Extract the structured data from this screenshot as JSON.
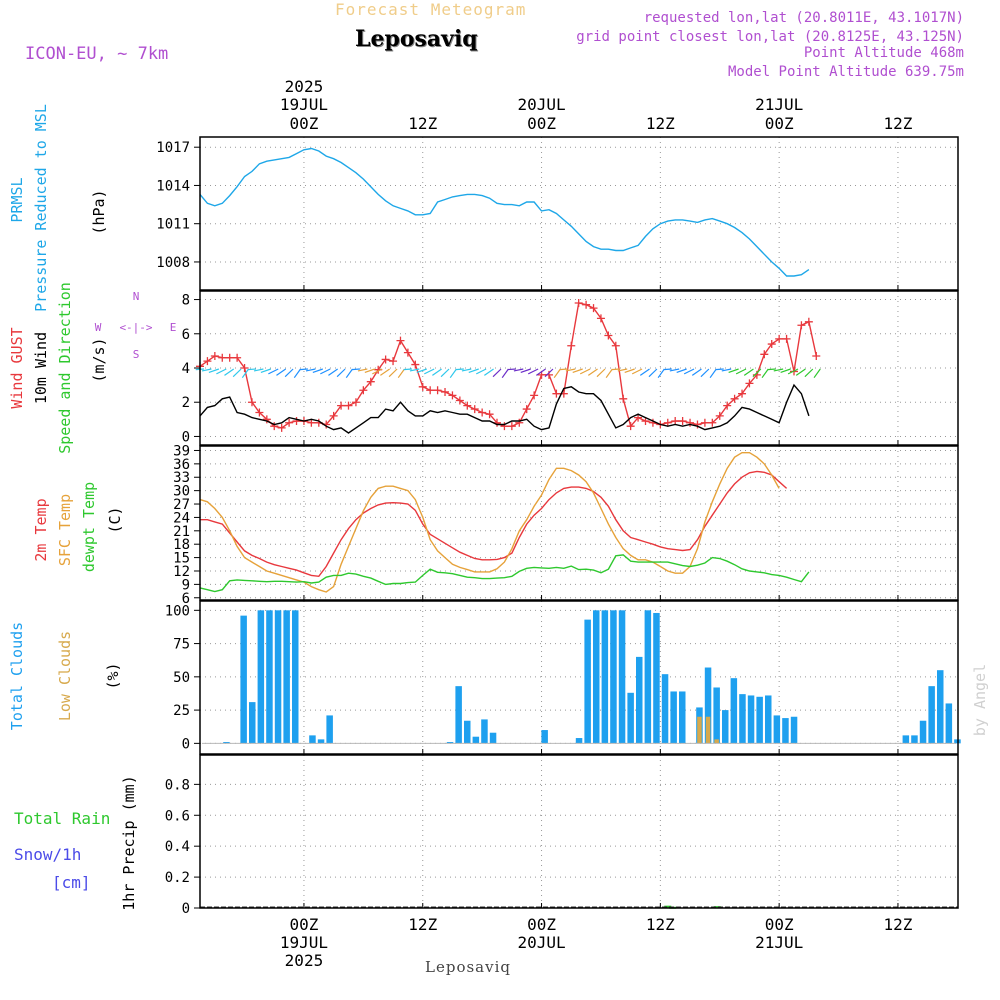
{
  "header": {
    "product": "Forecast Meteogram",
    "location": "Leposaviq",
    "model": "ICON-EU, ~ 7km",
    "requested": "requested lon,lat (20.8011E, 43.1017N)",
    "grid_point": "grid point closest lon,lat (20.8125E, 43.125N)",
    "point_alt": "Point Altitude 468m",
    "model_alt": "Model Point Altitude 639.75m"
  },
  "footer": {
    "location": "Leposaviq",
    "watermark": "by Angel"
  },
  "time_axis": {
    "ticks": [
      {
        "t": 0,
        "label": "00Z"
      },
      {
        "t": 12,
        "label": "12Z"
      },
      {
        "t": 24,
        "label": "00Z"
      },
      {
        "t": 36,
        "label": "12Z"
      },
      {
        "t": 48,
        "label": "00Z"
      },
      {
        "t": 60,
        "label": "12Z"
      }
    ],
    "top_dates": [
      {
        "t": 0,
        "year": "2025",
        "day": "19JUL"
      },
      {
        "t": 24,
        "year": "",
        "day": "20JUL"
      },
      {
        "t": 48,
        "year": "",
        "day": "21JUL"
      }
    ],
    "bottom_dates": [
      {
        "t": 0,
        "year": "2025",
        "day": "19JUL"
      },
      {
        "t": 24,
        "year": "",
        "day": "20JUL"
      },
      {
        "t": 48,
        "year": "",
        "day": "21JUL"
      }
    ]
  },
  "colors": {
    "pressure": "#1ea7e8",
    "gust": "#e8383d",
    "wind": "#000000",
    "temp2m": "#e8383d",
    "sfc": "#e6a23a",
    "dewpt": "#2ec82e",
    "total_cloud": "#1ea0ef",
    "low_cloud": "#d7a94c",
    "rain": "#2ec82e",
    "snow": "#4b4be8",
    "compass": "#b04fd0"
  },
  "chart_data": [
    {
      "type": "line",
      "panel": "pressure",
      "ylabel_lines": [
        "PRMSL",
        "Pressure Reduced to MSL"
      ],
      "unit": "(hPa)",
      "yticks": [
        1008,
        1011,
        1014,
        1017
      ],
      "ylim": [
        1005.8,
        1017.8
      ],
      "series": [
        {
          "values": [
            1013.3,
            1012.6,
            1012.4,
            1012.6,
            1013.2,
            1013.9,
            1014.7,
            1015.1,
            1015.7,
            1015.9,
            1016.0,
            1016.1,
            1016.2,
            1016.5,
            1016.8,
            1016.9,
            1016.7,
            1016.3,
            1016.1,
            1015.8,
            1015.4,
            1015.0,
            1014.5,
            1013.9,
            1013.3,
            1012.8,
            1012.4,
            1012.2,
            1012.0,
            1011.7,
            1011.7,
            1011.8,
            1012.7,
            1012.9,
            1013.1,
            1013.2,
            1013.3,
            1013.3,
            1013.2,
            1013.0,
            1012.6,
            1012.5,
            1012.5,
            1012.4,
            1012.7,
            1012.7,
            1012.0,
            1012.1,
            1011.8,
            1011.3,
            1010.8,
            1010.2,
            1009.6,
            1009.2,
            1009.0,
            1009.0,
            1008.9,
            1008.9,
            1009.1,
            1009.3,
            1010.0,
            1010.6,
            1011.0,
            1011.2,
            1011.3,
            1011.3,
            1011.2,
            1011.1,
            1011.3,
            1011.4,
            1011.2,
            1011.0,
            1010.7,
            1010.3,
            1009.8,
            1009.2,
            1008.6,
            1008.0,
            1007.5,
            1006.9,
            1006.9,
            1007.0,
            1007.4
          ]
        }
      ]
    },
    {
      "type": "line",
      "panel": "wind",
      "ylabel_lines": [
        "Wind GUST",
        "10m Wind",
        "Speed and Direction"
      ],
      "unit": "(m/s)",
      "compass": {
        "n": "N",
        "s": "S",
        "e": "E",
        "w": "W",
        "arrow": "<-|->"
      },
      "yticks": [
        0,
        2,
        4,
        6,
        8
      ],
      "ylim": [
        -0.5,
        8.5
      ],
      "series": [
        {
          "name": "Wind GUST",
          "values": [
            4.1,
            4.4,
            4.7,
            4.6,
            4.6,
            4.6,
            4.0,
            2.0,
            1.4,
            1.0,
            0.6,
            0.5,
            0.8,
            0.9,
            0.9,
            0.8,
            0.8,
            0.7,
            1.2,
            1.8,
            1.8,
            2.0,
            2.7,
            3.2,
            3.9,
            4.5,
            4.4,
            5.6,
            4.9,
            4.2,
            2.9,
            2.7,
            2.7,
            2.6,
            2.4,
            2.1,
            1.8,
            1.6,
            1.4,
            1.3,
            0.8,
            0.6,
            0.6,
            0.8,
            1.6,
            2.4,
            3.6,
            3.6,
            2.5,
            2.5,
            5.3,
            7.8,
            7.7,
            7.5,
            6.9,
            5.9,
            5.3,
            2.2,
            0.6,
            1.1,
            0.9,
            0.8,
            0.7,
            0.8,
            0.9,
            0.9,
            0.8,
            0.7,
            0.8,
            0.8,
            1.2,
            1.8,
            2.2,
            2.5,
            3.1,
            3.6,
            4.8,
            5.4,
            5.7,
            5.7,
            3.8,
            6.5,
            6.7,
            4.7
          ]
        },
        {
          "name": "10m Wind",
          "values": [
            1.2,
            1.7,
            1.8,
            2.2,
            2.3,
            1.4,
            1.3,
            1.1,
            1.0,
            0.9,
            0.7,
            0.8,
            1.1,
            1.0,
            0.9,
            1.0,
            0.9,
            0.6,
            0.4,
            0.5,
            0.2,
            0.5,
            0.8,
            1.1,
            1.1,
            1.6,
            1.5,
            2.0,
            1.5,
            1.2,
            1.2,
            1.5,
            1.4,
            1.5,
            1.4,
            1.3,
            1.3,
            1.1,
            0.9,
            0.9,
            0.7,
            0.7,
            0.9,
            0.9,
            1.0,
            0.6,
            0.4,
            0.5,
            1.9,
            2.8,
            2.9,
            2.6,
            2.5,
            2.5,
            2.1,
            1.3,
            0.5,
            0.7,
            1.1,
            1.3,
            1.1,
            0.9,
            0.7,
            0.6,
            0.7,
            0.6,
            0.7,
            0.6,
            0.4,
            0.5,
            0.6,
            0.8,
            1.2,
            1.7,
            1.6,
            1.4,
            1.2,
            1.0,
            0.8,
            2.0,
            3.0,
            2.5,
            1.2
          ]
        }
      ]
    },
    {
      "type": "line",
      "panel": "temperature",
      "ylabel_lines": [
        "2m Temp",
        "SFC Temp",
        "dewpt Temp"
      ],
      "unit": "(C)",
      "yticks": [
        6,
        9,
        12,
        15,
        18,
        21,
        24,
        27,
        30,
        33,
        36,
        39
      ],
      "ylim": [
        5.5,
        40
      ],
      "series": [
        {
          "name": "2m Temp",
          "values": [
            23.5,
            23.5,
            23.0,
            22.5,
            20.5,
            18.5,
            16.5,
            15.5,
            14.8,
            14.0,
            13.4,
            13.0,
            12.6,
            12.2,
            11.6,
            11.0,
            10.8,
            13.0,
            16.0,
            19.0,
            21.5,
            23.5,
            25.0,
            26.0,
            26.8,
            27.2,
            27.3,
            27.2,
            27.0,
            25.6,
            22.5,
            20.2,
            19.2,
            18.2,
            17.2,
            16.2,
            15.5,
            14.8,
            14.5,
            14.5,
            14.6,
            15.0,
            16.0,
            19.5,
            22.5,
            24.5,
            26.0,
            28.0,
            29.5,
            30.5,
            30.8,
            30.8,
            30.5,
            29.8,
            28.5,
            26.5,
            23.5,
            21.0,
            19.5,
            19.0,
            18.5,
            18.0,
            17.4,
            17.0,
            16.8,
            16.6,
            16.8,
            19.0,
            22.0,
            24.5,
            27.0,
            29.5,
            31.5,
            33.0,
            34.0,
            34.3,
            34.1,
            33.5,
            32.0,
            30.5
          ]
        },
        {
          "name": "SFC Temp",
          "values": [
            28.0,
            27.5,
            26.0,
            24.0,
            21.0,
            17.5,
            15.0,
            14.0,
            13.0,
            12.0,
            11.5,
            11.0,
            10.5,
            10.0,
            9.5,
            8.5,
            7.8,
            7.3,
            8.5,
            13.5,
            17.5,
            21.5,
            25.5,
            28.5,
            30.5,
            31.0,
            31.0,
            30.5,
            30.0,
            28.0,
            24.0,
            19.0,
            16.5,
            15.0,
            13.5,
            12.8,
            12.3,
            11.8,
            11.8,
            11.8,
            12.5,
            14.0,
            17.0,
            21.0,
            23.5,
            26.5,
            29.0,
            32.5,
            35.0,
            35.0,
            34.5,
            33.5,
            32.0,
            29.5,
            26.0,
            22.5,
            19.5,
            17.0,
            15.5,
            14.5,
            14.5,
            14.0,
            13.0,
            12.0,
            11.5,
            11.5,
            13.0,
            17.0,
            23.0,
            27.5,
            31.5,
            35.0,
            37.5,
            38.5,
            38.5,
            37.5,
            36.0,
            33.5,
            30.5
          ]
        },
        {
          "name": "dewpt Temp",
          "values": [
            8.2,
            7.8,
            7.4,
            7.8,
            9.8,
            10.0,
            9.9,
            9.8,
            9.7,
            9.6,
            9.7,
            9.7,
            9.6,
            9.5,
            9.6,
            9.3,
            9.5,
            10.6,
            11.0,
            11.0,
            11.5,
            11.3,
            10.8,
            10.4,
            9.7,
            9.0,
            9.2,
            9.2,
            9.4,
            9.5,
            11.0,
            12.4,
            11.7,
            11.6,
            11.4,
            11.0,
            10.6,
            10.5,
            10.3,
            10.3,
            10.4,
            10.5,
            10.8,
            11.9,
            12.6,
            12.8,
            12.7,
            12.6,
            12.8,
            12.6,
            13.1,
            12.3,
            12.4,
            12.2,
            11.6,
            12.4,
            15.4,
            15.6,
            14.2,
            14.0,
            14.0,
            14.0,
            14.0,
            14.0,
            13.6,
            13.2,
            13.0,
            13.3,
            13.8,
            15.0,
            14.8,
            14.2,
            13.4,
            12.5,
            12.0,
            11.8,
            11.6,
            11.2,
            11.0,
            10.6,
            10.1,
            9.6,
            11.8
          ]
        }
      ]
    },
    {
      "type": "bar",
      "panel": "clouds",
      "ylabel_lines": [
        "Total Clouds",
        "Low Clouds"
      ],
      "unit": "(%)",
      "yticks": [
        0,
        25,
        50,
        75,
        100
      ],
      "ylim": [
        -8,
        107
      ],
      "series": [
        {
          "name": "Total Clouds",
          "values": [
            0,
            0,
            1,
            0,
            96,
            31,
            100,
            100,
            100,
            100,
            100,
            0,
            6,
            3,
            21,
            0,
            0,
            0,
            0,
            0,
            0,
            0,
            0,
            0,
            0,
            0,
            0,
            0,
            1,
            43,
            17,
            5,
            18,
            8,
            0,
            0,
            0,
            0,
            0,
            10,
            0,
            0,
            0,
            4,
            93,
            100,
            100,
            100,
            100,
            38,
            65,
            100,
            98,
            52,
            39,
            39,
            0,
            27,
            57,
            42,
            25,
            49,
            37,
            36,
            35,
            36,
            21,
            19,
            20,
            0,
            0,
            0,
            0,
            0,
            0,
            0,
            0,
            0,
            0,
            0,
            0,
            6,
            6,
            17,
            43,
            55,
            30,
            3,
            0
          ]
        },
        {
          "name": "Low Clouds",
          "values": [
            0,
            0,
            0,
            0,
            0,
            0,
            0,
            0,
            0,
            0,
            0,
            0,
            0,
            0,
            0,
            0,
            0,
            0,
            0,
            0,
            0,
            0,
            0,
            0,
            0,
            0,
            0,
            0,
            0,
            0,
            0,
            0,
            0,
            0,
            0,
            0,
            0,
            0,
            0,
            0,
            0,
            0,
            0,
            0,
            0,
            0,
            0,
            0,
            0,
            0,
            0,
            0,
            0,
            0,
            0,
            0,
            0,
            20,
            20,
            3,
            0,
            0,
            0,
            0,
            0,
            0,
            0,
            0,
            0,
            0,
            0,
            0,
            0,
            0,
            0,
            0,
            0,
            0,
            0,
            0,
            0,
            0,
            0,
            0,
            0,
            0,
            0,
            0,
            0
          ]
        }
      ]
    },
    {
      "type": "bar",
      "panel": "precip",
      "ylabel": "1hr Precip (mm)",
      "legend_lines": [
        "Total  Rain",
        "Snow/1h",
        "[cm]"
      ],
      "yticks": [
        0,
        0.2,
        0.4,
        0.6,
        0.8
      ],
      "ytick_labels": [
        "0",
        "0.2",
        "0.4",
        "0.6",
        "0.8"
      ],
      "ylim": [
        0,
        0.99
      ],
      "series": [
        {
          "name": "Total Rain",
          "points": [
            {
              "t": 36.7,
              "value": 0.015
            },
            {
              "t": 37.2,
              "value": 0.008
            },
            {
              "t": 41.7,
              "value": 0.012
            }
          ]
        }
      ]
    }
  ]
}
